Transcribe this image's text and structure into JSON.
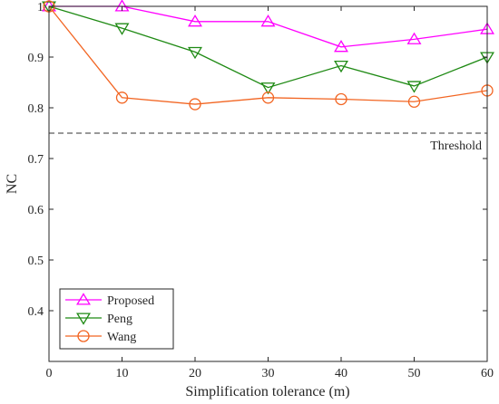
{
  "chart_data": {
    "type": "line",
    "title": "",
    "xlabel": "Simplification tolerance (m)",
    "ylabel": "NC",
    "x": [
      0,
      10,
      20,
      30,
      40,
      50,
      60
    ],
    "xlim": [
      0,
      60
    ],
    "ylim": [
      0.3,
      1.0
    ],
    "xticks": [
      0,
      10,
      20,
      30,
      40,
      50,
      60
    ],
    "yticks": [
      0.4,
      0.5,
      0.6,
      0.7,
      0.8,
      0.9,
      1.0
    ],
    "ytick_labels": [
      "0.4",
      "0.5",
      "0.6",
      "0.7",
      "0.8",
      "0.9",
      "1"
    ],
    "grid": false,
    "legend_position": "bottom-left",
    "series": [
      {
        "name": "Proposed",
        "color": "#ff00ff",
        "marker": "triangle-up",
        "values": [
          1.0,
          1.0,
          0.97,
          0.97,
          0.92,
          0.935,
          0.955
        ]
      },
      {
        "name": "Peng",
        "color": "#1f8a14",
        "marker": "triangle-down",
        "values": [
          1.0,
          0.957,
          0.91,
          0.84,
          0.883,
          0.843,
          0.9
        ]
      },
      {
        "name": "Wang",
        "color": "#f26522",
        "marker": "circle",
        "values": [
          1.0,
          0.82,
          0.807,
          0.82,
          0.817,
          0.812,
          0.834
        ]
      }
    ],
    "reference_lines": [
      {
        "label": "Threshold",
        "y": 0.75,
        "style": "dashed",
        "color": "#333333"
      }
    ]
  }
}
